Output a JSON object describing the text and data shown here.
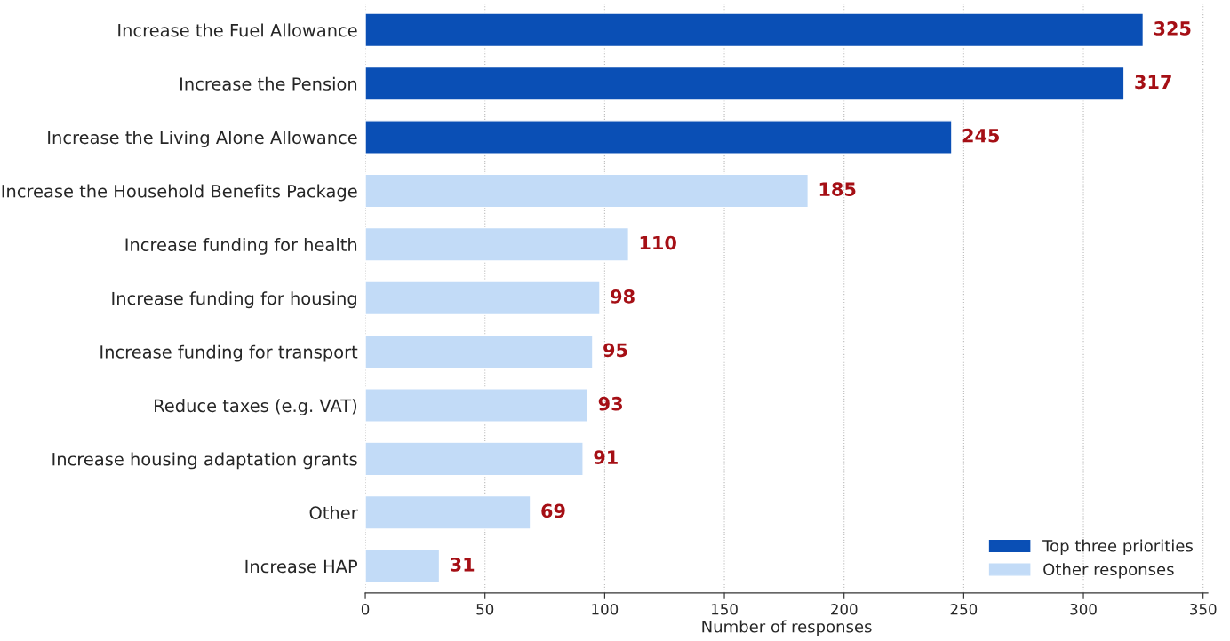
{
  "chart_data": {
    "type": "bar",
    "orientation": "horizontal",
    "xlabel": "Number of responses",
    "categories": [
      "Increase the Fuel Allowance",
      "Increase the Pension",
      "Increase the Living Alone Allowance",
      "Increase the Household Benefits Package",
      "Increase funding for health",
      "Increase funding for housing",
      "Increase funding for transport",
      "Reduce taxes (e.g. VAT)",
      "Increase housing adaptation grants",
      "Other",
      "Increase HAP"
    ],
    "series": [
      {
        "name": "Top three priorities",
        "color": "#0a4fb5",
        "values": [
          325,
          317,
          245,
          null,
          null,
          null,
          null,
          null,
          null,
          null,
          null
        ]
      },
      {
        "name": "Other responses",
        "color": "#c2dbf7",
        "values": [
          null,
          null,
          null,
          185,
          110,
          98,
          95,
          93,
          91,
          69,
          31
        ]
      }
    ],
    "xlim": [
      0,
      352
    ],
    "xticks": [
      0,
      50,
      100,
      150,
      200,
      250,
      300,
      350
    ],
    "data_labels": true,
    "grid": "x",
    "legend": "bottom right"
  }
}
